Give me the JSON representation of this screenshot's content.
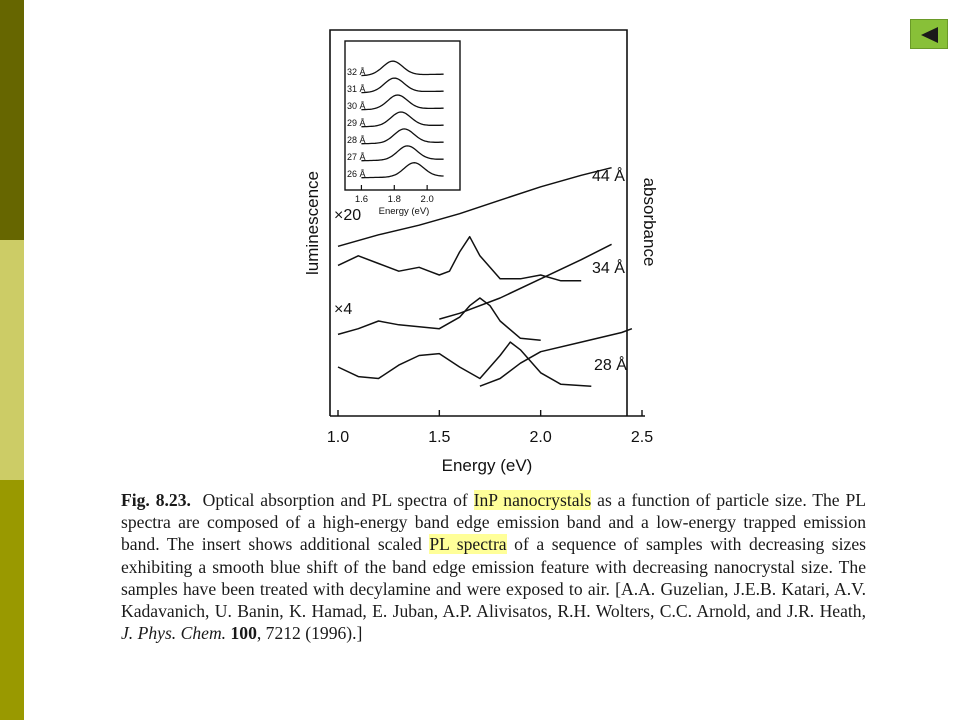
{
  "nav": {
    "back_icon": "triangle-left-icon",
    "accent_color": "#88c038"
  },
  "chart_data": {
    "type": "line",
    "xlabel": "Energy (eV)",
    "ylabel_left": "luminescence",
    "ylabel_right": "absorbance",
    "xlim": [
      1.0,
      2.5
    ],
    "xticks": [
      "1.0",
      "1.5",
      "2.0",
      "2.5"
    ],
    "curve_labels": [
      "44 Å",
      "34 Å",
      "28 Å"
    ],
    "scale_labels": [
      "×20",
      "×4"
    ],
    "series": [
      {
        "name": "44 Å",
        "kind": "absorbance",
        "x": [
          1.0,
          1.2,
          1.4,
          1.6,
          1.8,
          2.0,
          2.2,
          2.35
        ],
        "y": [
          0.55,
          0.61,
          0.66,
          0.72,
          0.79,
          0.86,
          0.92,
          0.96
        ]
      },
      {
        "name": "44 Å",
        "kind": "luminescence",
        "x": [
          1.0,
          1.1,
          1.2,
          1.3,
          1.4,
          1.45,
          1.5,
          1.55,
          1.6,
          1.65,
          1.7,
          1.8,
          1.9,
          2.0,
          2.1,
          2.2
        ],
        "y": [
          0.45,
          0.5,
          0.46,
          0.42,
          0.44,
          0.42,
          0.4,
          0.42,
          0.52,
          0.6,
          0.5,
          0.38,
          0.38,
          0.4,
          0.37,
          0.37
        ]
      },
      {
        "name": "34 Å",
        "kind": "absorbance",
        "x": [
          1.5,
          1.6,
          1.8,
          2.0,
          2.2,
          2.35
        ],
        "y": [
          0.17,
          0.2,
          0.28,
          0.38,
          0.48,
          0.56
        ]
      },
      {
        "name": "34 Å",
        "kind": "luminescence",
        "x": [
          1.0,
          1.1,
          1.2,
          1.3,
          1.4,
          1.5,
          1.6,
          1.65,
          1.7,
          1.75,
          1.8,
          1.9,
          2.0
        ],
        "y": [
          0.09,
          0.12,
          0.16,
          0.14,
          0.13,
          0.12,
          0.18,
          0.24,
          0.28,
          0.24,
          0.16,
          0.07,
          0.06
        ]
      },
      {
        "name": "28 Å",
        "kind": "absorbance",
        "x": [
          1.7,
          1.8,
          1.9,
          2.0,
          2.2,
          2.4,
          2.45
        ],
        "y": [
          -0.18,
          -0.14,
          -0.06,
          0.0,
          0.05,
          0.1,
          0.12
        ]
      },
      {
        "name": "28 Å",
        "kind": "luminescence",
        "x": [
          1.0,
          1.1,
          1.2,
          1.3,
          1.4,
          1.5,
          1.6,
          1.7,
          1.8,
          1.85,
          1.9,
          2.0,
          2.1,
          2.25
        ],
        "y": [
          -0.08,
          -0.13,
          -0.14,
          -0.07,
          -0.02,
          -0.01,
          -0.08,
          -0.14,
          -0.02,
          0.05,
          0.01,
          -0.11,
          -0.17,
          -0.18
        ]
      }
    ],
    "inset": {
      "type": "line",
      "xlabel": "Energy (eV)",
      "xlim": [
        1.5,
        2.2
      ],
      "xticks": [
        "1.6",
        "1.8",
        "2.0"
      ],
      "series": [
        {
          "name": "32 Å",
          "peak": 1.79
        },
        {
          "name": "31 Å",
          "peak": 1.8
        },
        {
          "name": "30 Å",
          "peak": 1.82
        },
        {
          "name": "29 Å",
          "peak": 1.84
        },
        {
          "name": "28 Å",
          "peak": 1.86
        },
        {
          "name": "27 Å",
          "peak": 1.88
        },
        {
          "name": "26 Å",
          "peak": 1.92
        }
      ]
    }
  },
  "caption": {
    "fig_label": "Fig. 8.23.",
    "t1": "Optical absorption and PL spectra of",
    "h1": "InP nanocrystals",
    "t2": "as a function of particle size. The PL spectra are composed of a high-energy band edge emission band and a low-energy trapped emission band. The insert shows additional scaled",
    "h2": "PL spectra",
    "t3": "of a sequence of samples with decreasing sizes exhibiting a smooth blue shift of the band edge emission feature with decreasing nanocrystal size. The samples have been treated with decylamine and were exposed to air. [A.A. Guzelian, J.E.B. Katari, A.V. Kadavanich, U. Banin, K. Hamad, E. Juban, A.P. Alivisatos, R.H. Wolters, C.C. Arnold, and J.R. Heath,",
    "journal": "J. Phys. Chem.",
    "volume": "100",
    "t4": ", 7212 (1996).]"
  }
}
